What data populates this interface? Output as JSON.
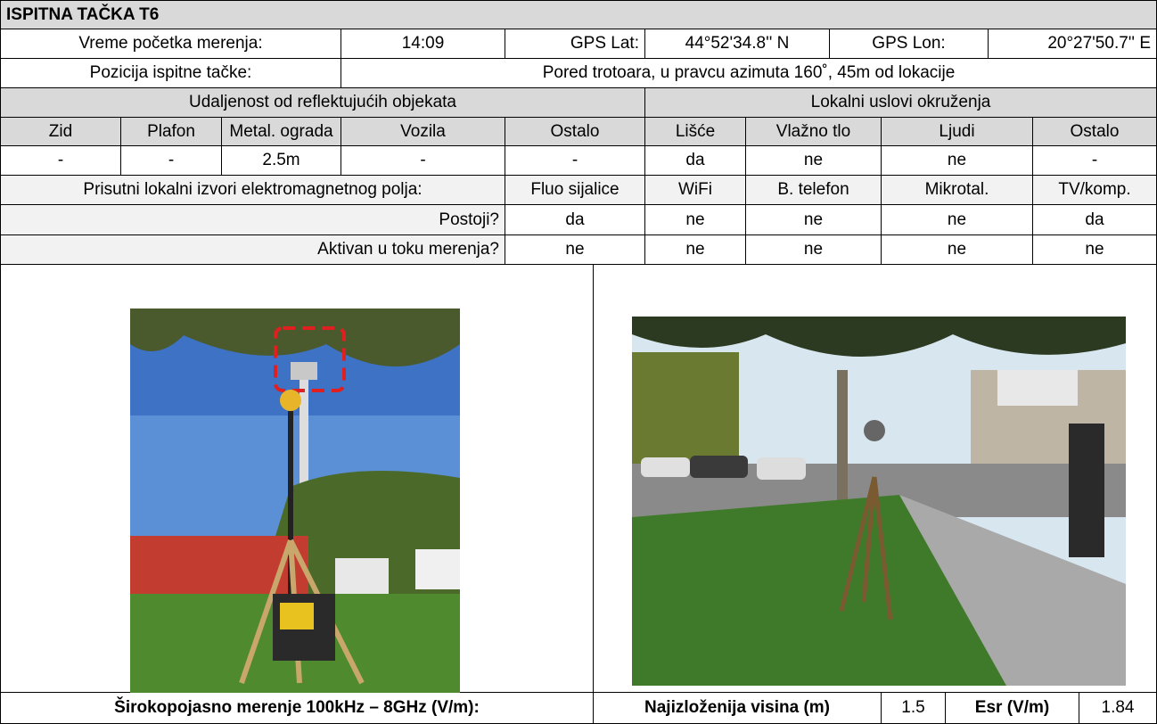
{
  "title": "ISPITNA TAČKA T6",
  "info": {
    "start_label": "Vreme početka merenja:",
    "start_time": "14:09",
    "lat_label": "GPS Lat:",
    "lat": "44°52'34.8'' N",
    "lon_label": "GPS Lon:",
    "lon": "20°27'50.7'' E",
    "position_label": "Pozicija ispitne tačke:",
    "position": "Pored trotoara, u pravcu azimuta 160˚, 45m od lokacije"
  },
  "reflective": {
    "title": "Udaljenost od reflektujućih objekata",
    "headers": [
      "Zid",
      "Plafon",
      "Metal. ograda",
      "Vozila",
      "Ostalo"
    ],
    "values": [
      "-",
      "-",
      "2.5m",
      "-",
      "-"
    ]
  },
  "environment": {
    "title": "Lokalni uslovi okruženja",
    "headers": [
      "Lišće",
      "Vlažno tlo",
      "Ljudi",
      "Ostalo"
    ],
    "values": [
      "da",
      "ne",
      "ne",
      "-"
    ]
  },
  "sources": {
    "title": "Prisutni lokalni izvori elektromagnetnog polja:",
    "headers": [
      "Fluo sijalice",
      "WiFi",
      "B. telefon",
      "Mikrotal.",
      "TV/komp."
    ],
    "rows": [
      {
        "label": "Postoji?",
        "values": [
          "da",
          "ne",
          "ne",
          "ne",
          "da"
        ]
      },
      {
        "label": "Aktivan u toku merenja?",
        "values": [
          "ne",
          "ne",
          "ne",
          "ne",
          "ne"
        ]
      }
    ]
  },
  "footer": {
    "broadband_label": "Širokopojasno merenje 100kHz – 8GHz (V/m):",
    "height_label": "Najizloženija visina (m)",
    "height": 1.5,
    "esr_label": "Esr (V/m)",
    "esr": 1.84
  }
}
